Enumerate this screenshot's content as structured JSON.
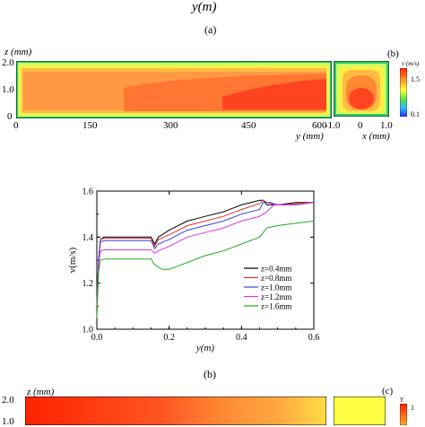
{
  "top_axis_label": "y(m)",
  "captions": {
    "a": "(a)",
    "b": "(b)"
  },
  "panel_a": {
    "z_label": "z (mm)",
    "z_ticks": [
      "2.0",
      "1.0",
      "0"
    ],
    "y_ticks": [
      "0",
      "150",
      "300",
      "450",
      "600"
    ],
    "y_label": "y (mm)"
  },
  "panel_b_inset": {
    "tag": "(b)",
    "x_ticks": [
      "-1.0",
      "0",
      "1.0"
    ],
    "x_label": "x (mm)",
    "colorbar_title": "v (m/s)",
    "colorbar_max": "1.5",
    "colorbar_min": "0.1"
  },
  "bottom_panel": {
    "z_label": "z (mm)",
    "z_ticks": [
      "2.0",
      "1.0"
    ],
    "tag": "(c)",
    "colorbar_title": "Y",
    "colorbar_max": "1"
  },
  "colors": {
    "red": "#ff3311",
    "orange": "#ff8533",
    "yellow": "#ffff33",
    "green": "#55dd55",
    "blue": "#2233ff"
  },
  "chart_data": {
    "type": "line",
    "xlabel": "y(m)",
    "ylabel": "v(m/s)",
    "xlim": [
      0.0,
      0.6
    ],
    "ylim": [
      1.0,
      1.6
    ],
    "xticks": [
      "0.0",
      "0.2",
      "0.4",
      "0.6"
    ],
    "yticks": [
      "1.0",
      "1.2",
      "1.4",
      "1.6"
    ],
    "legend_position": "bottom-right",
    "series": [
      {
        "name": "z=0.4mm",
        "color": "#000000",
        "x": [
          0,
          0.005,
          0.01,
          0.02,
          0.05,
          0.1,
          0.15,
          0.16,
          0.17,
          0.2,
          0.25,
          0.3,
          0.35,
          0.4,
          0.45,
          0.46,
          0.47,
          0.5,
          0.55,
          0.6
        ],
        "y": [
          1.1,
          1.3,
          1.39,
          1.4,
          1.4,
          1.4,
          1.4,
          1.37,
          1.4,
          1.43,
          1.47,
          1.49,
          1.51,
          1.54,
          1.56,
          1.56,
          1.54,
          1.54,
          1.55,
          1.55
        ]
      },
      {
        "name": "z=0.8mm",
        "color": "#e03030",
        "x": [
          0,
          0.005,
          0.01,
          0.02,
          0.05,
          0.1,
          0.15,
          0.16,
          0.17,
          0.2,
          0.25,
          0.3,
          0.35,
          0.4,
          0.45,
          0.46,
          0.47,
          0.5,
          0.55,
          0.6
        ],
        "y": [
          1.1,
          1.3,
          1.39,
          1.395,
          1.395,
          1.395,
          1.395,
          1.36,
          1.39,
          1.41,
          1.45,
          1.47,
          1.49,
          1.52,
          1.545,
          1.56,
          1.55,
          1.54,
          1.545,
          1.55
        ]
      },
      {
        "name": "z=1.0mm",
        "color": "#3344dd",
        "x": [
          0,
          0.005,
          0.01,
          0.02,
          0.05,
          0.1,
          0.15,
          0.16,
          0.17,
          0.2,
          0.25,
          0.3,
          0.35,
          0.4,
          0.45,
          0.46,
          0.48,
          0.5,
          0.55,
          0.6
        ],
        "y": [
          1.1,
          1.3,
          1.38,
          1.385,
          1.385,
          1.385,
          1.385,
          1.35,
          1.37,
          1.39,
          1.43,
          1.45,
          1.47,
          1.5,
          1.52,
          1.55,
          1.55,
          1.54,
          1.54,
          1.55
        ]
      },
      {
        "name": "z=1.2mm",
        "color": "#dd33dd",
        "x": [
          0,
          0.005,
          0.01,
          0.02,
          0.05,
          0.1,
          0.15,
          0.16,
          0.17,
          0.2,
          0.25,
          0.3,
          0.35,
          0.4,
          0.45,
          0.47,
          0.49,
          0.5,
          0.55,
          0.6
        ],
        "y": [
          1.1,
          1.28,
          1.34,
          1.345,
          1.345,
          1.345,
          1.345,
          1.33,
          1.34,
          1.36,
          1.4,
          1.42,
          1.44,
          1.47,
          1.49,
          1.51,
          1.54,
          1.54,
          1.54,
          1.55
        ]
      },
      {
        "name": "z=1.6mm",
        "color": "#22aa22",
        "x": [
          0,
          0.005,
          0.01,
          0.02,
          0.05,
          0.1,
          0.15,
          0.16,
          0.18,
          0.2,
          0.25,
          0.3,
          0.35,
          0.4,
          0.45,
          0.47,
          0.5,
          0.55,
          0.6
        ],
        "y": [
          1.05,
          1.25,
          1.3,
          1.305,
          1.305,
          1.305,
          1.305,
          1.28,
          1.26,
          1.26,
          1.29,
          1.32,
          1.34,
          1.37,
          1.4,
          1.44,
          1.45,
          1.46,
          1.47
        ]
      }
    ]
  }
}
